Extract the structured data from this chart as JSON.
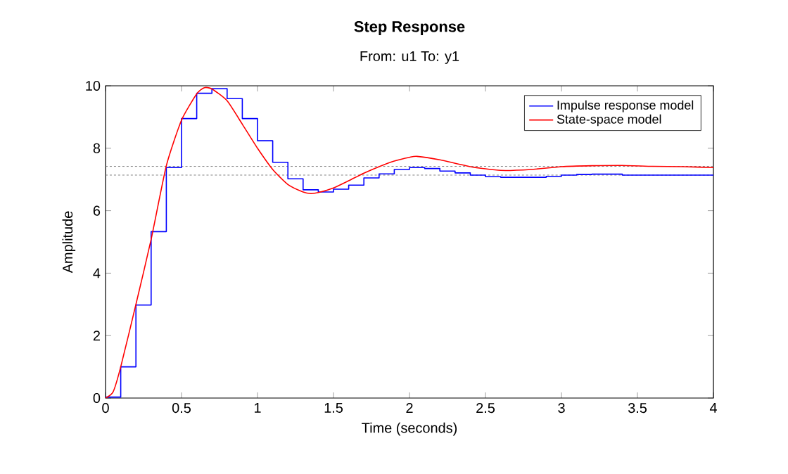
{
  "chart_data": {
    "type": "line",
    "title": "Step Response",
    "subtitle": "From: u1  To: y1",
    "xlabel": "Time (seconds)",
    "ylabel": "Amplitude",
    "xlim": [
      0,
      4
    ],
    "xticks": [
      0,
      0.5,
      1,
      1.5,
      2,
      2.5,
      3,
      3.5,
      4
    ],
    "ylim": [
      0,
      10
    ],
    "yticks": [
      0,
      2,
      4,
      6,
      8,
      10
    ],
    "legend": "top right",
    "grid": false,
    "series": [
      {
        "name": "Impulse response model",
        "type": "step",
        "color": "#0000ff",
        "x": [
          0,
          0.1,
          0.2,
          0.3,
          0.4,
          0.5,
          0.6,
          0.7,
          0.8,
          0.9,
          1.0,
          1.1,
          1.2,
          1.3,
          1.4,
          1.5,
          1.6,
          1.7,
          1.8,
          1.9,
          2.0,
          2.1,
          2.2,
          2.3,
          2.4,
          2.5,
          2.6,
          2.7,
          2.8,
          2.9,
          3.0,
          3.1,
          3.2,
          3.3,
          3.4,
          3.5,
          3.6,
          3.7,
          3.8,
          3.9,
          4.0
        ],
        "values": [
          0.03,
          1.0,
          2.98,
          5.33,
          7.38,
          8.95,
          9.76,
          9.91,
          9.59,
          8.95,
          8.24,
          7.55,
          7.02,
          6.67,
          6.6,
          6.69,
          6.82,
          7.05,
          7.18,
          7.32,
          7.38,
          7.35,
          7.27,
          7.21,
          7.14,
          7.09,
          7.07,
          7.07,
          7.07,
          7.1,
          7.14,
          7.16,
          7.17,
          7.17,
          7.14,
          7.14,
          7.14,
          7.14,
          7.14,
          7.14,
          7.14
        ]
      },
      {
        "name": "State-space model",
        "color": "#ff0000",
        "x": [
          0,
          0.05,
          0.1,
          0.2,
          0.3,
          0.4,
          0.5,
          0.6,
          0.65,
          0.7,
          0.8,
          0.9,
          1.0,
          1.1,
          1.2,
          1.3,
          1.35,
          1.4,
          1.5,
          1.6,
          1.7,
          1.8,
          1.9,
          2.0,
          2.05,
          2.2,
          2.4,
          2.6,
          2.8,
          3.0,
          3.2,
          3.4,
          3.6,
          3.8,
          4.0
        ],
        "values": [
          0,
          0.2,
          1.0,
          3.0,
          5.08,
          7.44,
          8.9,
          9.74,
          9.94,
          9.9,
          9.52,
          8.77,
          8.0,
          7.32,
          6.84,
          6.6,
          6.55,
          6.58,
          6.73,
          6.96,
          7.2,
          7.41,
          7.59,
          7.71,
          7.74,
          7.63,
          7.41,
          7.29,
          7.32,
          7.41,
          7.44,
          7.45,
          7.42,
          7.41,
          7.38
        ]
      }
    ],
    "ref_lines": [
      {
        "axis": "y",
        "value": 7.42,
        "color": "#808080",
        "line_style": "dotted"
      },
      {
        "axis": "y",
        "value": 7.14,
        "color": "#808080",
        "line_style": "dotted"
      }
    ]
  }
}
